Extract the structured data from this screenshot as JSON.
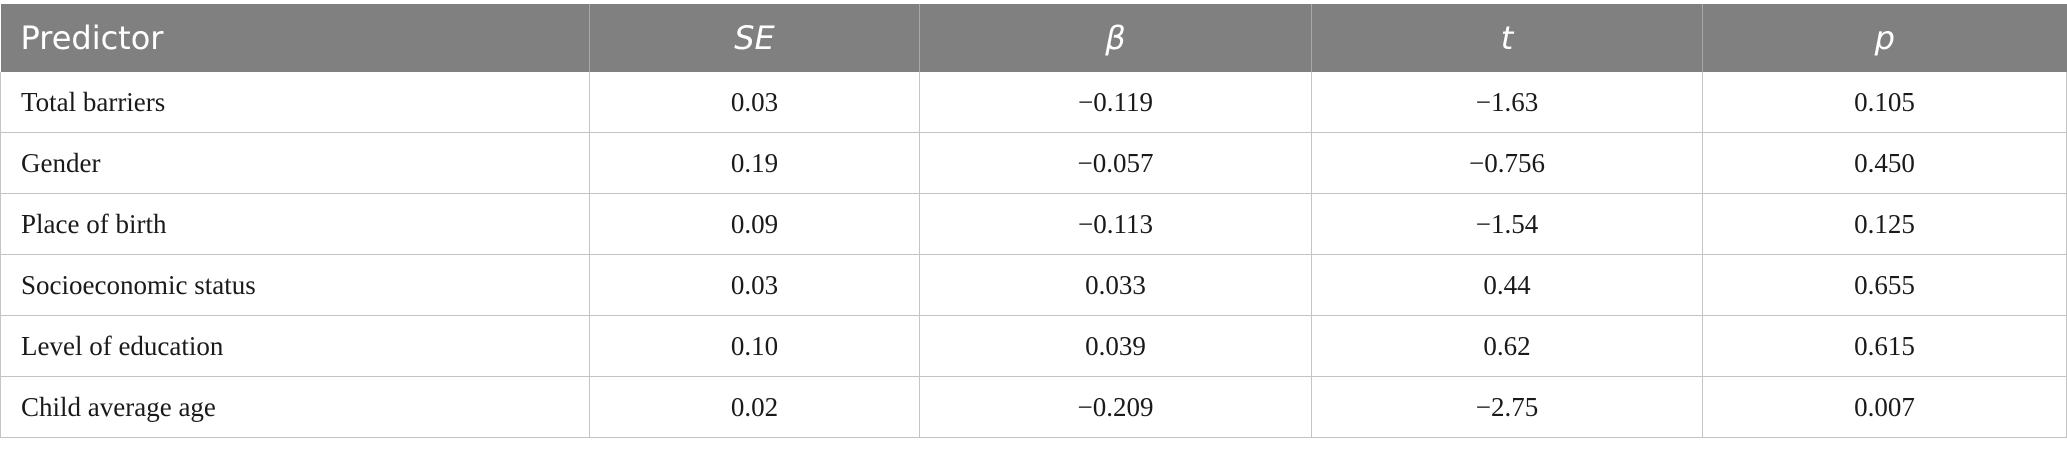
{
  "table": {
    "headers": [
      "Predictor",
      "SE",
      "β",
      "t",
      "p"
    ],
    "rows": [
      [
        "Total barriers",
        "0.03",
        "−0.119",
        "−1.63",
        "0.105"
      ],
      [
        "Gender",
        "0.19",
        "−0.057",
        "−0.756",
        "0.450"
      ],
      [
        "Place of birth",
        "0.09",
        "−0.113",
        "−1.54",
        "0.125"
      ],
      [
        "Socioeconomic status",
        "0.03",
        "0.033",
        "0.44",
        "0.655"
      ],
      [
        "Level of education",
        "0.10",
        "0.039",
        "0.62",
        "0.615"
      ],
      [
        "Child average age",
        "0.02",
        "−0.209",
        "−2.75",
        "0.007"
      ]
    ]
  },
  "colors": {
    "header_bg": "#808080",
    "header_text": "#ffffff",
    "grid": "#c4c4c4"
  }
}
